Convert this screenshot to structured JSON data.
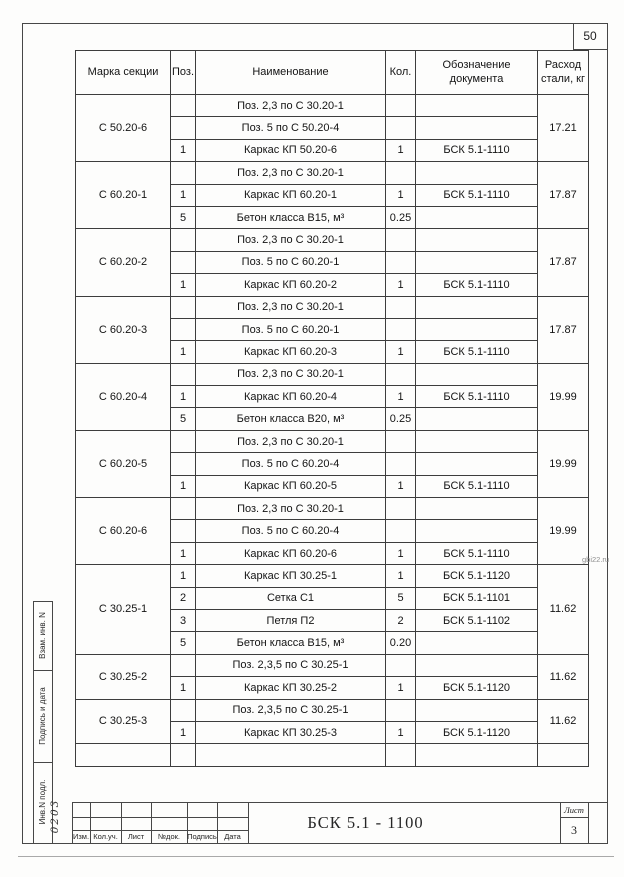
{
  "page": {
    "sheet_number_top": "50",
    "watermark": "gbi22.ru",
    "colors": {
      "ink": "#1a1a1a",
      "line": "#474747",
      "watermark": "#8f8f8f"
    }
  },
  "table": {
    "headers": {
      "mark": "Марка секции",
      "pos": "Поз.",
      "name": "Наименование",
      "qty": "Кол.",
      "doc": "Обозначение документа",
      "steel": "Расход стали, кг"
    },
    "sections": [
      {
        "mark": "С 50.20-6",
        "steel": "17.21",
        "rows": [
          {
            "pos": "",
            "name": "Поз. 2,3 по С 30.20-1",
            "qty": "",
            "doc": ""
          },
          {
            "pos": "",
            "name": "Поз. 5 по С 50.20-4",
            "qty": "",
            "doc": ""
          },
          {
            "pos": "1",
            "name": "Каркас КП 50.20-6",
            "qty": "1",
            "doc": "БСК 5.1-1110"
          }
        ]
      },
      {
        "mark": "С 60.20-1",
        "steel": "17.87",
        "rows": [
          {
            "pos": "",
            "name": "Поз. 2,3 по С 30.20-1",
            "qty": "",
            "doc": ""
          },
          {
            "pos": "1",
            "name": "Каркас КП 60.20-1",
            "qty": "1",
            "doc": "БСК 5.1-1110"
          },
          {
            "pos": "5",
            "name": "Бетон класса В15, м³",
            "qty": "0.25",
            "doc": ""
          }
        ]
      },
      {
        "mark": "С 60.20-2",
        "steel": "17.87",
        "rows": [
          {
            "pos": "",
            "name": "Поз. 2,3 по С 30.20-1",
            "qty": "",
            "doc": ""
          },
          {
            "pos": "",
            "name": "Поз. 5 по С 60.20-1",
            "qty": "",
            "doc": ""
          },
          {
            "pos": "1",
            "name": "Каркас КП 60.20-2",
            "qty": "1",
            "doc": "БСК 5.1-1110"
          }
        ]
      },
      {
        "mark": "С 60.20-3",
        "steel": "17.87",
        "rows": [
          {
            "pos": "",
            "name": "Поз. 2,3 по С 30.20-1",
            "qty": "",
            "doc": ""
          },
          {
            "pos": "",
            "name": "Поз. 5 по С 60.20-1",
            "qty": "",
            "doc": ""
          },
          {
            "pos": "1",
            "name": "Каркас КП 60.20-3",
            "qty": "1",
            "doc": "БСК 5.1-1110"
          }
        ]
      },
      {
        "mark": "С 60.20-4",
        "steel": "19.99",
        "rows": [
          {
            "pos": "",
            "name": "Поз. 2,3 по С 30.20-1",
            "qty": "",
            "doc": ""
          },
          {
            "pos": "1",
            "name": "Каркас КП 60.20-4",
            "qty": "1",
            "doc": "БСК 5.1-1110"
          },
          {
            "pos": "5",
            "name": "Бетон класса В20, м³",
            "qty": "0.25",
            "doc": ""
          }
        ]
      },
      {
        "mark": "С 60.20-5",
        "steel": "19.99",
        "rows": [
          {
            "pos": "",
            "name": "Поз. 2,3 по С 30.20-1",
            "qty": "",
            "doc": ""
          },
          {
            "pos": "",
            "name": "Поз. 5 по С 60.20-4",
            "qty": "",
            "doc": ""
          },
          {
            "pos": "1",
            "name": "Каркас КП 60.20-5",
            "qty": "1",
            "doc": "БСК 5.1-1110"
          }
        ]
      },
      {
        "mark": "С 60.20-6",
        "steel": "19.99",
        "rows": [
          {
            "pos": "",
            "name": "Поз. 2,3 по С 30.20-1",
            "qty": "",
            "doc": ""
          },
          {
            "pos": "",
            "name": "Поз. 5 по С 60.20-4",
            "qty": "",
            "doc": ""
          },
          {
            "pos": "1",
            "name": "Каркас КП 60.20-6",
            "qty": "1",
            "doc": "БСК 5.1-1110"
          }
        ]
      },
      {
        "mark": "С 30.25-1",
        "steel": "11.62",
        "rows": [
          {
            "pos": "1",
            "name": "Каркас КП 30.25-1",
            "qty": "1",
            "doc": "БСК 5.1-1120"
          },
          {
            "pos": "2",
            "name": "Сетка С1",
            "qty": "5",
            "doc": "БСК 5.1-1101"
          },
          {
            "pos": "3",
            "name": "Петля П2",
            "qty": "2",
            "doc": "БСК 5.1-1102"
          },
          {
            "pos": "5",
            "name": "Бетон класса В15, м³",
            "qty": "0.20",
            "doc": ""
          }
        ]
      },
      {
        "mark": "С 30.25-2",
        "steel": "11.62",
        "rows": [
          {
            "pos": "",
            "name": "Поз. 2,3,5 по С 30.25-1",
            "qty": "",
            "doc": ""
          },
          {
            "pos": "1",
            "name": "Каркас КП 30.25-2",
            "qty": "1",
            "doc": "БСК 5.1-1120"
          }
        ]
      },
      {
        "mark": "С 30.25-3",
        "steel": "11.62",
        "rows": [
          {
            "pos": "",
            "name": "Поз. 2,3,5 по С 30.25-1",
            "qty": "",
            "doc": ""
          },
          {
            "pos": "1",
            "name": "Каркас КП 30.25-3",
            "qty": "1",
            "doc": "БСК 5.1-1120"
          }
        ]
      },
      {
        "mark": "",
        "steel": "",
        "rows": [
          {
            "pos": "",
            "name": "",
            "qty": "",
            "doc": ""
          }
        ]
      }
    ]
  },
  "title_block": {
    "doc_code": "БСК 5.1 - 1100",
    "sheet_label": "Лист",
    "sheet_number": "3",
    "bottom_labels": [
      "Изм.",
      "Кол.уч.",
      "Лист",
      "№док.",
      "Подпись",
      "Дата"
    ]
  },
  "margin": {
    "labels": [
      "Взам. инв. N",
      "Подпись и дата",
      "Инв.N подл."
    ],
    "inventory_number": "0203"
  }
}
